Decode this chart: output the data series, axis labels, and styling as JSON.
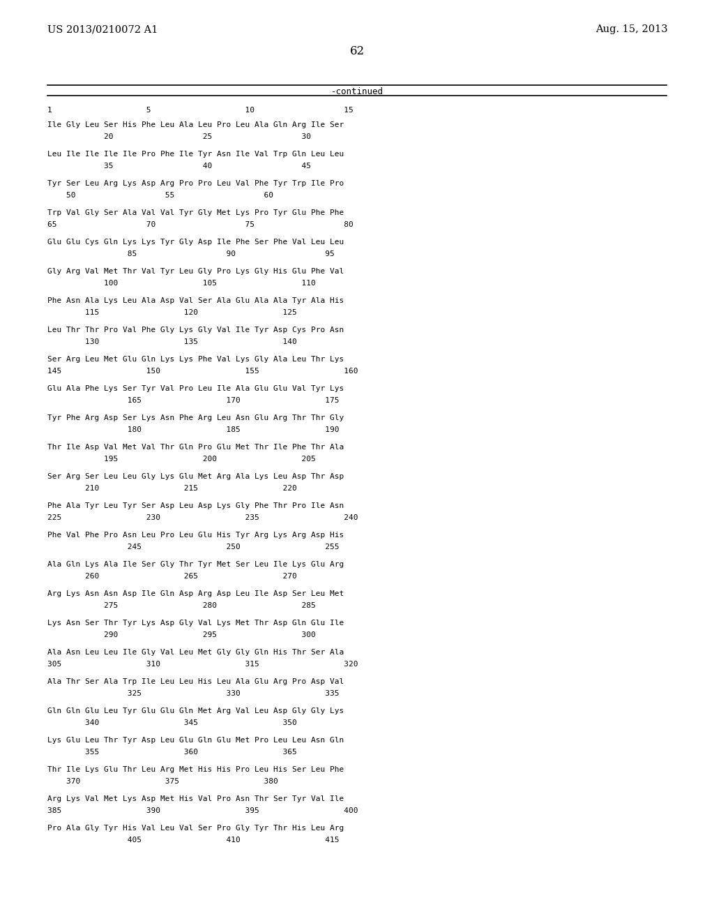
{
  "header_left": "US 2013/0210072 A1",
  "header_right": "Aug. 15, 2013",
  "page_number": "62",
  "continued_label": "-continued",
  "ruler": "1                    5                    10                   15",
  "blocks": [
    [
      "Ile Gly Leu Ser His Phe Leu Ala Leu Pro Leu Ala Gln Arg Ile Ser",
      "            20                   25                   30"
    ],
    [
      "Leu Ile Ile Ile Ile Pro Phe Ile Tyr Asn Ile Val Trp Gln Leu Leu",
      "            35                   40                   45"
    ],
    [
      "Tyr Ser Leu Arg Lys Asp Arg Pro Pro Leu Val Phe Tyr Trp Ile Pro",
      "    50                   55                   60"
    ],
    [
      "Trp Val Gly Ser Ala Val Val Tyr Gly Met Lys Pro Tyr Glu Phe Phe",
      "65                   70                   75                   80"
    ],
    [
      "Glu Glu Cys Gln Lys Lys Tyr Gly Asp Ile Phe Ser Phe Val Leu Leu",
      "                 85                   90                   95"
    ],
    [
      "Gly Arg Val Met Thr Val Tyr Leu Gly Pro Lys Gly His Glu Phe Val",
      "            100                  105                  110"
    ],
    [
      "Phe Asn Ala Lys Leu Ala Asp Val Ser Ala Glu Ala Ala Tyr Ala His",
      "        115                  120                  125"
    ],
    [
      "Leu Thr Thr Pro Val Phe Gly Lys Gly Val Ile Tyr Asp Cys Pro Asn",
      "        130                  135                  140"
    ],
    [
      "Ser Arg Leu Met Glu Gln Lys Lys Phe Val Lys Gly Ala Leu Thr Lys",
      "145                  150                  155                  160"
    ],
    [
      "Glu Ala Phe Lys Ser Tyr Val Pro Leu Ile Ala Glu Glu Val Tyr Lys",
      "                 165                  170                  175"
    ],
    [
      "Tyr Phe Arg Asp Ser Lys Asn Phe Arg Leu Asn Glu Arg Thr Thr Gly",
      "                 180                  185                  190"
    ],
    [
      "Thr Ile Asp Val Met Val Thr Gln Pro Glu Met Thr Ile Phe Thr Ala",
      "            195                  200                  205"
    ],
    [
      "Ser Arg Ser Leu Leu Gly Lys Glu Met Arg Ala Lys Leu Asp Thr Asp",
      "        210                  215                  220"
    ],
    [
      "Phe Ala Tyr Leu Tyr Ser Asp Leu Asp Lys Gly Phe Thr Pro Ile Asn",
      "225                  230                  235                  240"
    ],
    [
      "Phe Val Phe Pro Asn Leu Pro Leu Glu His Tyr Arg Lys Arg Asp His",
      "                 245                  250                  255"
    ],
    [
      "Ala Gln Lys Ala Ile Ser Gly Thr Tyr Met Ser Leu Ile Lys Glu Arg",
      "        260                  265                  270"
    ],
    [
      "Arg Lys Asn Asn Asp Ile Gln Asp Arg Asp Leu Ile Asp Ser Leu Met",
      "            275                  280                  285"
    ],
    [
      "Lys Asn Ser Thr Tyr Lys Asp Gly Val Lys Met Thr Asp Gln Glu Ile",
      "            290                  295                  300"
    ],
    [
      "Ala Asn Leu Leu Ile Gly Val Leu Met Gly Gly Gln His Thr Ser Ala",
      "305                  310                  315                  320"
    ],
    [
      "Ala Thr Ser Ala Trp Ile Leu Leu His Leu Ala Glu Arg Pro Asp Val",
      "                 325                  330                  335"
    ],
    [
      "Gln Gln Glu Leu Tyr Glu Glu Gln Met Arg Val Leu Asp Gly Gly Lys",
      "        340                  345                  350"
    ],
    [
      "Lys Glu Leu Thr Tyr Asp Leu Glu Gln Glu Met Pro Leu Leu Asn Gln",
      "        355                  360                  365"
    ],
    [
      "Thr Ile Lys Glu Thr Leu Arg Met His His Pro Leu His Ser Leu Phe",
      "    370                  375                  380"
    ],
    [
      "Arg Lys Val Met Lys Asp Met His Val Pro Asn Thr Ser Tyr Val Ile",
      "385                  390                  395                  400"
    ],
    [
      "Pro Ala Gly Tyr His Val Leu Val Ser Pro Gly Tyr Thr His Leu Arg",
      "                 405                  410                  415"
    ]
  ]
}
